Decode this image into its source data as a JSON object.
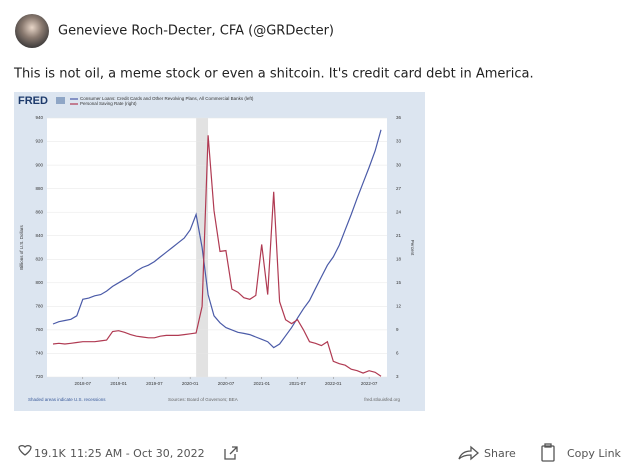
{
  "author": {
    "name": "Genevieve Roch-Decter, CFA (@GRDecter)"
  },
  "tweet": {
    "text": "This is not oil, a meme stock or even a shitcoin. It's credit card debt in America."
  },
  "chart_data": {
    "type": "line",
    "brand": "FRED",
    "x": [
      "2018-02",
      "2018-03",
      "2018-04",
      "2018-05",
      "2018-06",
      "2018-07",
      "2018-08",
      "2018-09",
      "2018-10",
      "2018-11",
      "2018-12",
      "2019-01",
      "2019-02",
      "2019-03",
      "2019-04",
      "2019-05",
      "2019-06",
      "2019-07",
      "2019-08",
      "2019-09",
      "2019-10",
      "2019-11",
      "2019-12",
      "2020-01",
      "2020-02",
      "2020-03",
      "2020-04",
      "2020-05",
      "2020-06",
      "2020-07",
      "2020-08",
      "2020-09",
      "2020-10",
      "2020-11",
      "2020-12",
      "2021-01",
      "2021-02",
      "2021-03",
      "2021-04",
      "2021-05",
      "2021-06",
      "2021-07",
      "2021-08",
      "2021-09",
      "2021-10",
      "2021-11",
      "2021-12",
      "2022-01",
      "2022-02",
      "2022-03",
      "2022-04",
      "2022-05",
      "2022-06",
      "2022-07",
      "2022-08",
      "2022-09"
    ],
    "series": [
      {
        "name": "Consumer Loans: Credit Cards and Other Revolving Plans, All Commercial Banks (left)",
        "color": "#4b5ba8",
        "values": [
          765,
          767,
          768,
          769,
          772,
          786,
          787,
          789,
          790,
          793,
          797,
          800,
          803,
          806,
          810,
          813,
          815,
          818,
          822,
          826,
          830,
          834,
          838,
          845,
          858,
          830,
          790,
          772,
          766,
          762,
          760,
          758,
          757,
          756,
          754,
          752,
          750,
          745,
          748,
          755,
          762,
          770,
          778,
          785,
          795,
          805,
          815,
          822,
          832,
          845,
          858,
          872,
          885,
          898,
          912,
          930
        ]
      },
      {
        "name": "Personal Saving Rate (right)",
        "color": "#b03a52",
        "axis": "y2",
        "values": [
          7.2,
          7.3,
          7.2,
          7.3,
          7.4,
          7.5,
          7.5,
          7.5,
          7.6,
          7.7,
          8.8,
          8.9,
          8.7,
          8.4,
          8.2,
          8.1,
          8.0,
          8.0,
          8.2,
          8.3,
          8.3,
          8.3,
          8.4,
          8.5,
          8.6,
          12.0,
          33.8,
          24.2,
          19.0,
          19.1,
          14.2,
          13.8,
          13.1,
          12.9,
          13.4,
          19.9,
          13.5,
          26.6,
          12.6,
          10.3,
          9.8,
          10.3,
          9.0,
          7.5,
          7.3,
          7.0,
          7.5,
          5.0,
          4.7,
          4.5,
          4.0,
          3.8,
          3.5,
          3.8,
          3.6,
          3.1
        ]
      }
    ],
    "ylabel": "Billions of U.S. Dollars",
    "y2label": "Percent",
    "xlim": [
      "2018-01",
      "2022-10"
    ],
    "xticks": [
      "2018-07",
      "2019-01",
      "2019-07",
      "2020-01",
      "2020-07",
      "2021-01",
      "2021-07",
      "2022-01",
      "2022-07"
    ],
    "ylim": [
      720,
      940
    ],
    "yticks": [
      720,
      740,
      760,
      780,
      800,
      820,
      840,
      860,
      880,
      900,
      920,
      940
    ],
    "y2lim": [
      3,
      36
    ],
    "y2ticks": [
      3,
      6,
      9,
      12,
      15,
      18,
      21,
      24,
      27,
      30,
      33,
      36
    ],
    "recession": [
      "2020-02",
      "2020-04"
    ],
    "notes": {
      "shaded": "Shaded areas indicate U.S. recessions",
      "source": "Sources: Board of Governors; BEA",
      "site": "fred.stlouisfed.org"
    }
  },
  "footer": {
    "likes": "19.1K",
    "time": "11:25 AM - Oct 30, 2022",
    "share": "Share",
    "copy": "Copy Link"
  }
}
